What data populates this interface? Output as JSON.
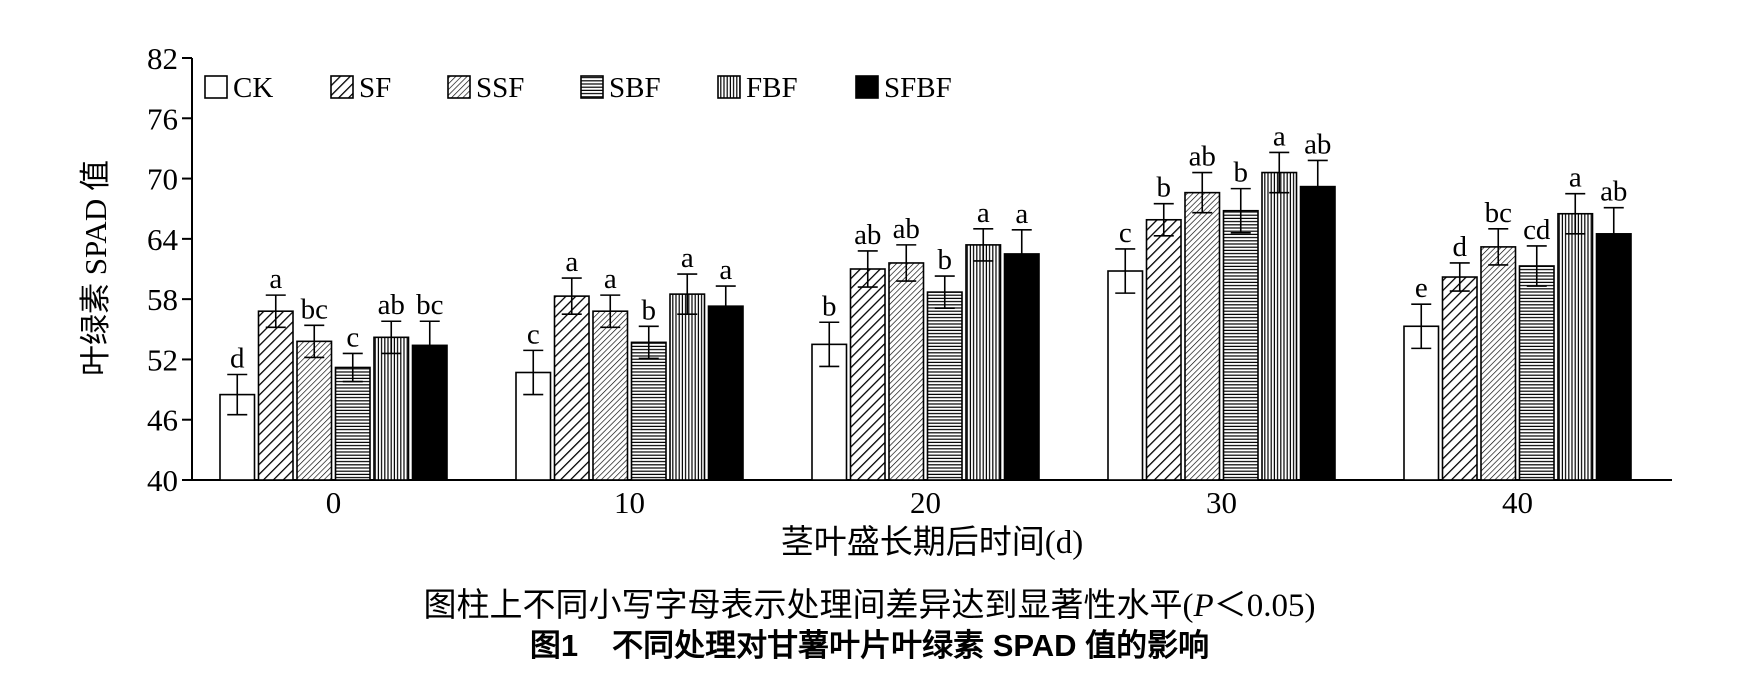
{
  "chart_data": {
    "type": "bar",
    "xlabel": "茎叶盛长期后时间(d)",
    "ylabel": "叶绿素 SPAD 值",
    "ylim": [
      40,
      82
    ],
    "yticks": [
      40,
      46,
      52,
      58,
      64,
      70,
      76,
      82
    ],
    "categories": [
      "0",
      "10",
      "20",
      "30",
      "40"
    ],
    "legend_position": "top-left",
    "series": [
      {
        "name": "CK",
        "fill": "white",
        "values": [
          48.5,
          50.7,
          53.5,
          60.8,
          55.3
        ],
        "errors": [
          2.0,
          2.2,
          2.2,
          2.2,
          2.2
        ],
        "letters": [
          "d",
          "c",
          "b",
          "c",
          "e"
        ]
      },
      {
        "name": "SF",
        "fill": "diag-wide",
        "values": [
          56.8,
          58.3,
          61.0,
          65.9,
          60.2
        ],
        "errors": [
          1.6,
          1.8,
          1.8,
          1.6,
          1.4
        ],
        "letters": [
          "a",
          "a",
          "ab",
          "b",
          "d"
        ]
      },
      {
        "name": "SSF",
        "fill": "diag-dense",
        "values": [
          53.8,
          56.8,
          61.6,
          68.6,
          63.2
        ],
        "errors": [
          1.6,
          1.6,
          1.8,
          2.0,
          1.8
        ],
        "letters": [
          "bc",
          "a",
          "ab",
          "ab",
          "bc"
        ]
      },
      {
        "name": "SBF",
        "fill": "horizontal",
        "values": [
          51.2,
          53.7,
          58.7,
          66.8,
          61.3
        ],
        "errors": [
          1.4,
          1.6,
          1.6,
          2.2,
          2.0
        ],
        "letters": [
          "c",
          "b",
          "b",
          "b",
          "cd"
        ]
      },
      {
        "name": "FBF",
        "fill": "vertical",
        "values": [
          54.2,
          58.5,
          63.4,
          70.6,
          66.5
        ],
        "errors": [
          1.6,
          2.0,
          1.6,
          2.0,
          2.0
        ],
        "letters": [
          "ab",
          "a",
          "a",
          "a",
          "a"
        ]
      },
      {
        "name": "SFBF",
        "fill": "black",
        "values": [
          53.4,
          57.3,
          62.5,
          69.2,
          64.5
        ],
        "errors": [
          2.4,
          2.0,
          2.4,
          2.6,
          2.6
        ],
        "letters": [
          "bc",
          "a",
          "a",
          "ab",
          "ab"
        ]
      }
    ]
  },
  "caption": {
    "note_prefix": "图柱上不同小写字母表示处理间差异达到显著性水平(",
    "note_p": "P",
    "note_suffix": "＜0.05)",
    "figure_number": "图1",
    "figure_title": "不同处理对甘薯叶片叶绿素 SPAD 值的影响"
  }
}
